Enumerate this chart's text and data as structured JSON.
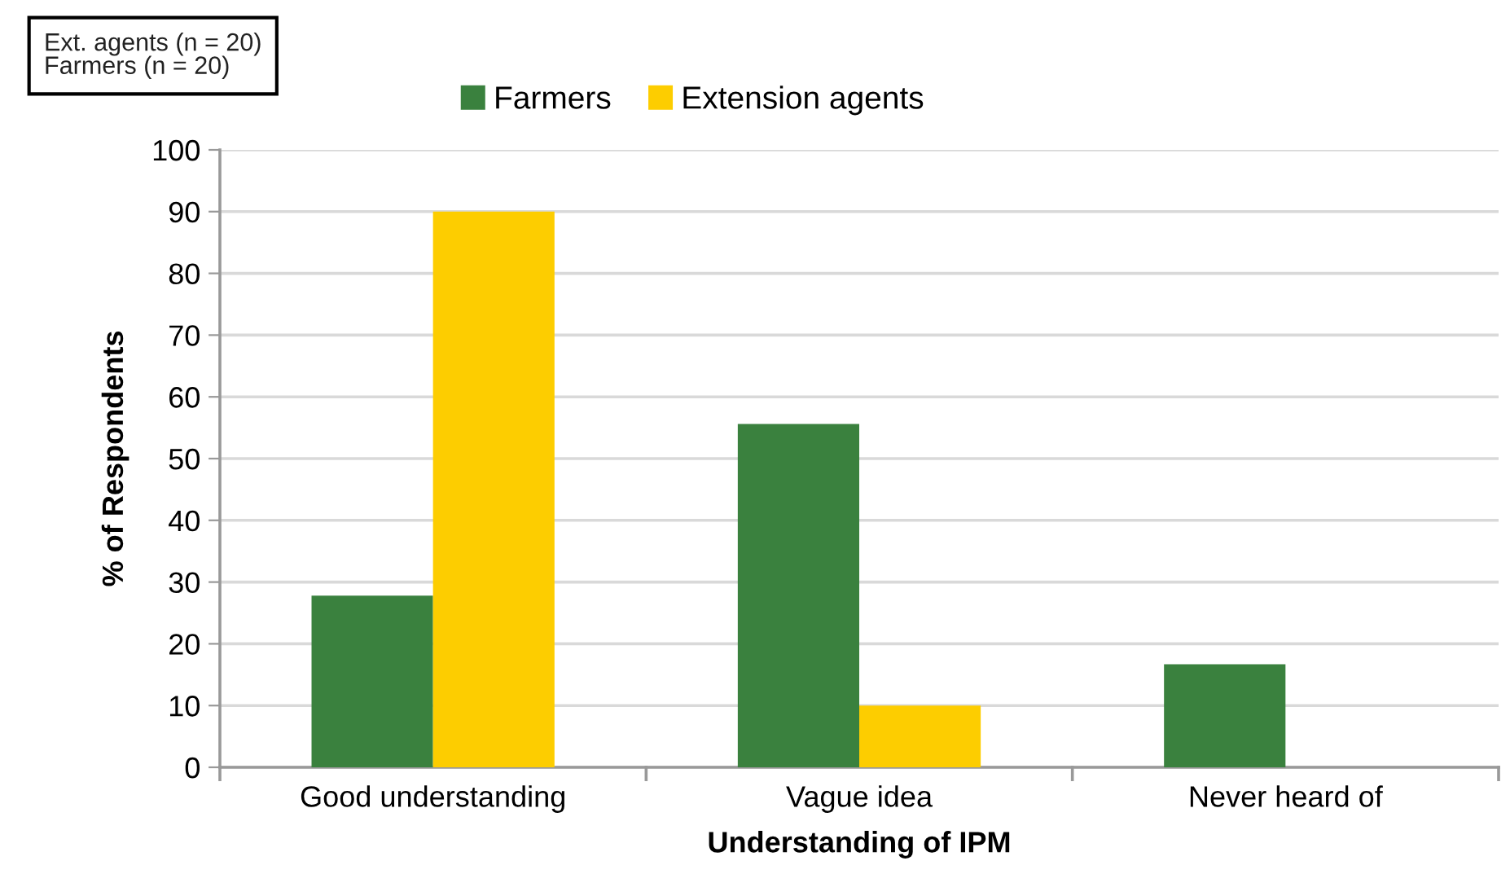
{
  "chart_data": {
    "type": "bar",
    "categories": [
      "Good understanding",
      "Vague idea",
      "Never heard of"
    ],
    "series": [
      {
        "name": "Farmers",
        "color": "#3a813e",
        "values": [
          27.8,
          55.6,
          16.7
        ]
      },
      {
        "name": "Extension agents",
        "color": "#fdcd00",
        "values": [
          90,
          10,
          0
        ]
      }
    ],
    "xlabel": "Understanding of IPM",
    "ylabel": "% of Respondents",
    "ylim": [
      0,
      100
    ],
    "yticks": [
      0,
      10,
      20,
      30,
      40,
      50,
      60,
      70,
      80,
      90,
      100
    ],
    "grid": "y",
    "legend": "top",
    "annotations": [
      "Ext. agents (n = 20)\nFarmers (n = 20)"
    ]
  }
}
